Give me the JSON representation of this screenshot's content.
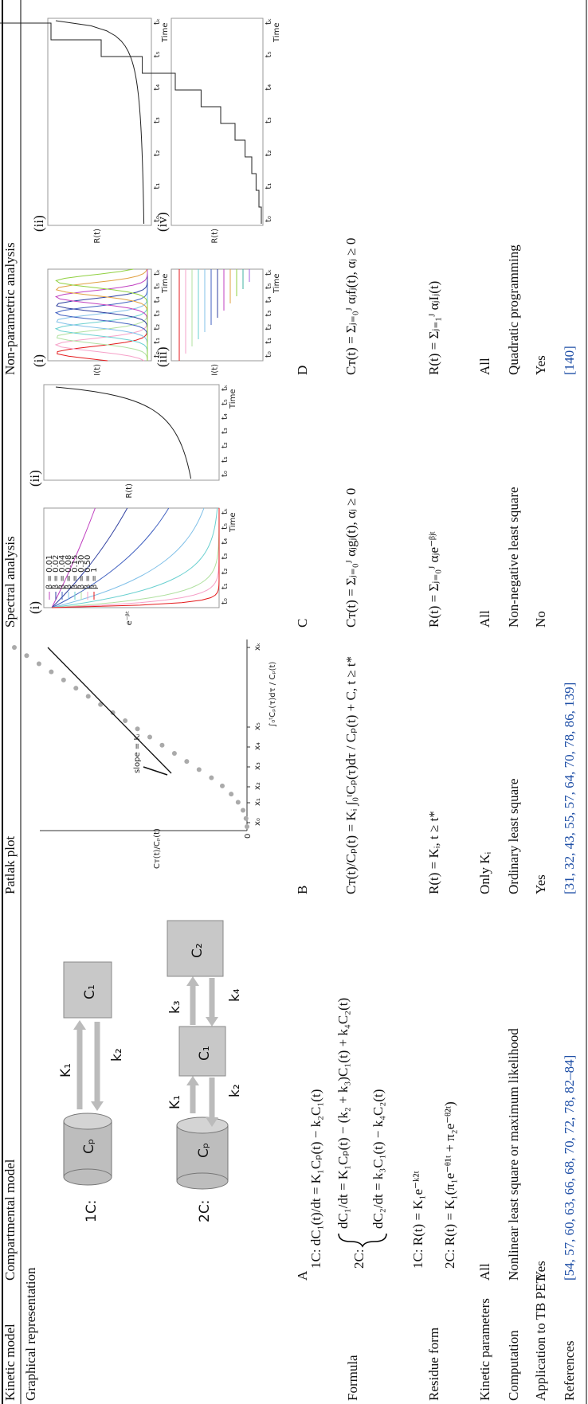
{
  "header": [
    "Kinetic model",
    "Compartmental model",
    "Patlak plot",
    "Spectral analysis",
    "Non-parametric analysis"
  ],
  "graphical": {
    "label": "Graphical representation",
    "panels": [
      "A",
      "B",
      "C",
      "D"
    ],
    "compartmental": {
      "one": {
        "tag": "1C:",
        "plasma": "Cₚ",
        "c1": "C₁",
        "K1": "K₁",
        "k2": "k₂"
      },
      "two": {
        "tag": "2C:",
        "plasma": "Cₚ",
        "c1": "C₁",
        "c2": "C₂",
        "K1": "K₁",
        "k2": "k₂",
        "k3": "k₃",
        "k4": "k₄"
      }
    },
    "patlak": {
      "ylabel": "Cᴛ(t)/Cₚ(t)",
      "xlabel": "∫₀ᵗCₚ(τ)dτ / Cₚ(t)",
      "slope": "slope = Kᵢ",
      "origin": "0",
      "xticks": [
        "x₀",
        "x₁",
        "x₂",
        "x₃",
        "x₄",
        "x₅",
        "xₖ"
      ]
    },
    "time_ticks": [
      "t₀",
      "t₁",
      "t₂",
      "t₃",
      "t₄",
      "t₅",
      "tₖ"
    ],
    "spectral": [
      {
        "tag": "(i)",
        "ylabel": "e⁻ᵝᵗ",
        "xlabel": "Time",
        "legend": [
          "β = 0.01",
          "β = 0.02",
          "β = 0.04",
          "β = 0.08",
          "β = 0.15",
          "β = 0.30",
          "β = 0.50",
          "β = 1"
        ]
      },
      {
        "tag": "(ii)",
        "ylabel": "R(t)",
        "xlabel": "Time"
      }
    ],
    "nonparametric": [
      {
        "tag": "(i)",
        "ylabel": "I(t)",
        "xlabel": "Time"
      },
      {
        "tag": "(ii)",
        "ylabel": "R(t)",
        "xlabel": "Time"
      },
      {
        "tag": "(iii)",
        "ylabel": "I(t)",
        "xlabel": "Time"
      },
      {
        "tag": "(iv)",
        "ylabel": "R(t)",
        "xlabel": "Time"
      }
    ]
  },
  "formula": {
    "label": "Formula",
    "compartmental": [
      "1C: dC₁(t)/dt = K₁Cₚ(t) − k₂C₁(t)",
      "2C:",
      "dC₁/dt = K₁Cₚ(t) − (k₂ + k₃)C₁(t) + k₄C₂(t)",
      "dC₂/dt = k₃C₁(t) − k₄C₂(t)"
    ],
    "patlak": "Cᴛ(t)/Cₚ(t) = Kᵢ ∫₀ᵗCₚ(τ)dτ / Cₚ(t) + C, t ≥ t*",
    "spectral": "Cᴛ(t) = Σⱼ₌₀ᴶ αⱼgⱼ(t), αⱼ ≥ 0",
    "nonparametric": "Cᴛ(t) = Σⱼ₌₀ᴶ αⱼfⱼ(t), αⱼ ≥ 0"
  },
  "residue": {
    "label": "Residue form",
    "compartmental": [
      "1C: R(t) = K₁e⁻ᵏ²ᵗ",
      "2C: R(t) = K₁(π₁e⁻ᶿ¹ᵗ + π₂e⁻ᶿ²ᵗ)"
    ],
    "patlak": "R(t) = Kᵢ, t ≥ t*",
    "spectral": "R(t) = Σⱼ₌₀ᴶ αⱼe⁻ᵝʲᵗ",
    "nonparametric": "R(t) = Σⱼ₌₁ᴶ αⱼIⱼ(t)"
  },
  "rows": [
    {
      "label": "Kinetic parameters",
      "cells": [
        "All",
        "Only Kᵢ",
        "All",
        "All"
      ]
    },
    {
      "label": "Computation",
      "cells": [
        "Nonlinear least square or maximum likelihood",
        "Ordinary least square",
        "Non-negative least square",
        "Quadratic programming"
      ]
    },
    {
      "label": "Application to TB PET",
      "cells": [
        "Yes",
        "Yes",
        "No",
        "Yes"
      ]
    },
    {
      "label": "References",
      "cells": [
        "[54, 57, 60, 63, 66, 68, 70, 72, 78, 82–84]",
        "[31, 32, 43, 55, 57, 64, 70, 78, 86, 139]",
        null,
        "[140]"
      ]
    }
  ]
}
